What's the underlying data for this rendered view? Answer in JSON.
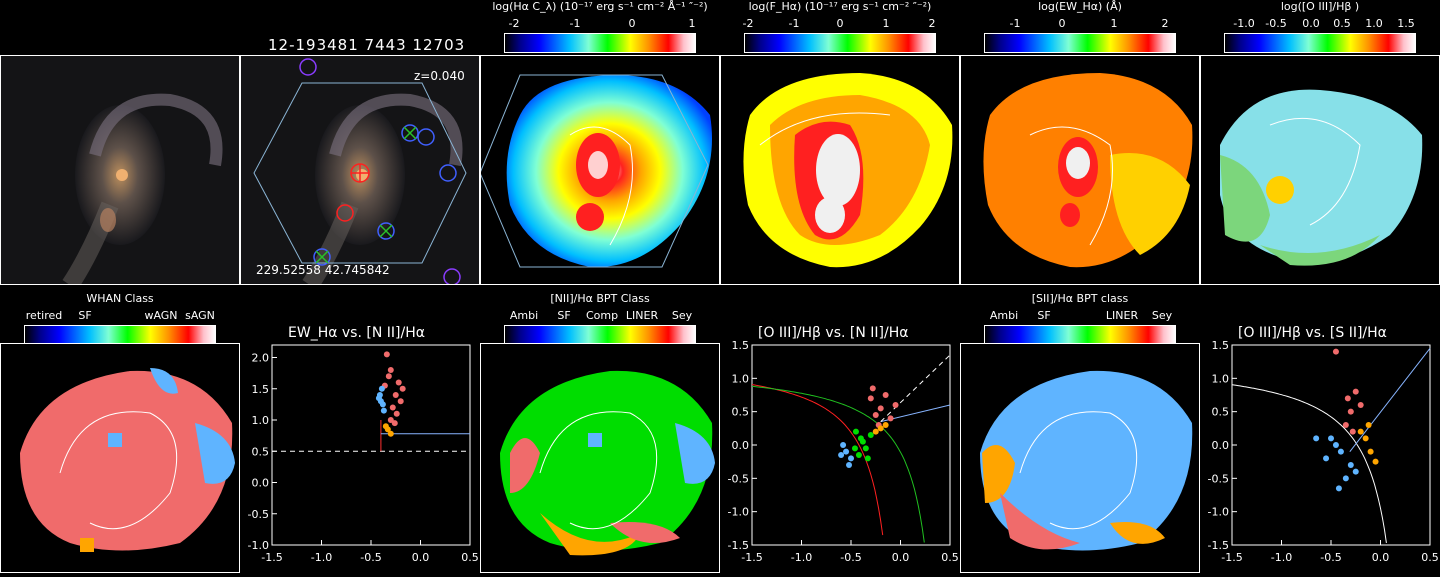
{
  "header": {
    "plate_ifu": "12-193481 7443 12703"
  },
  "image_panels": {
    "redshift": "z=0.040",
    "coords": "229.52558 42.745842"
  },
  "colorbars": [
    {
      "id": "ha-cont",
      "title": "log(Hα C_λ) (10⁻¹⁷ erg s⁻¹ cm⁻² Å⁻¹ ″⁻²)",
      "ticks": [
        "-2",
        "-1",
        "0",
        "1"
      ]
    },
    {
      "id": "ha-flux",
      "title": "log(F_Hα) (10⁻¹⁷ erg s⁻¹ cm⁻² ″⁻²)",
      "ticks": [
        "-2",
        "-1",
        "0",
        "1",
        "2"
      ]
    },
    {
      "id": "ew-ha",
      "title": "log(EW_Hα) (Å)",
      "ticks": [
        "-1",
        "0",
        "1",
        "2"
      ]
    },
    {
      "id": "oiii-hb",
      "title": "log([O III]/Hβ )",
      "ticks": [
        "-1.0",
        "-0.5",
        "0.0",
        "0.5",
        "1.0",
        "1.5"
      ]
    },
    {
      "id": "whan",
      "title": "WHAN Class",
      "ticks": [
        "retired",
        "SF",
        "wAGN",
        "sAGN"
      ]
    },
    {
      "id": "nii-bpt",
      "title": "[NII]/Hα BPT Class",
      "ticks": [
        "Ambi",
        "SF",
        "Comp",
        "LINER",
        "Sey"
      ]
    },
    {
      "id": "sii-bpt",
      "title": "[SII]/Hα BPT class",
      "ticks": [
        "Ambi",
        "SF",
        "LINER",
        "Sey"
      ]
    }
  ],
  "chart_data": [
    {
      "type": "scatter",
      "title": "EW_Hα vs. [N II]/Hα",
      "xlim": [
        -1.5,
        0.5
      ],
      "ylim": [
        -1.0,
        2.2
      ],
      "xticks": [
        "-1.5",
        "-1.0",
        "-0.5",
        "0.0",
        "0.5"
      ],
      "yticks": [
        "-1.0",
        "-0.5",
        "0.0",
        "0.5",
        "1.0",
        "1.5",
        "2.0"
      ],
      "series": [
        {
          "color": "#f06b6b",
          "points": [
            [
              -0.36,
              1.55
            ],
            [
              -0.32,
              1.7
            ],
            [
              -0.28,
              1.2
            ],
            [
              -0.25,
              1.4
            ],
            [
              -0.3,
              1.0
            ],
            [
              -0.22,
              1.6
            ],
            [
              -0.34,
              2.05
            ],
            [
              -0.2,
              1.3
            ],
            [
              -0.26,
              0.95
            ],
            [
              -0.3,
              1.8
            ],
            [
              -0.18,
              1.5
            ],
            [
              -0.24,
              1.1
            ]
          ]
        },
        {
          "color": "#5fb4ff",
          "points": [
            [
              -0.4,
              1.3
            ],
            [
              -0.38,
              1.25
            ],
            [
              -0.41,
              1.4
            ],
            [
              -0.37,
              1.15
            ],
            [
              -0.39,
              1.5
            ],
            [
              -0.42,
              1.35
            ]
          ]
        },
        {
          "color": "#ffa500",
          "points": [
            [
              -0.35,
              0.9
            ],
            [
              -0.3,
              0.78
            ],
            [
              -0.33,
              0.85
            ]
          ]
        }
      ]
    },
    {
      "type": "scatter",
      "title": "[O III]/Hβ vs. [N II]/Hα",
      "xlim": [
        -1.5,
        0.5
      ],
      "ylim": [
        -1.5,
        1.5
      ],
      "xticks": [
        "-1.5",
        "-1.0",
        "-0.5",
        "0.0",
        "0.5"
      ],
      "yticks": [
        "-1.5",
        "-1.0",
        "-0.5",
        "0.0",
        "0.5",
        "1.0",
        "1.5"
      ],
      "series": [
        {
          "color": "#f06b6b",
          "points": [
            [
              -0.3,
              0.7
            ],
            [
              -0.2,
              0.55
            ],
            [
              -0.15,
              0.75
            ],
            [
              -0.25,
              0.45
            ],
            [
              -0.1,
              0.4
            ],
            [
              -0.28,
              0.85
            ],
            [
              -0.05,
              0.6
            ],
            [
              -0.22,
              0.3
            ]
          ]
        },
        {
          "color": "#00dd00",
          "points": [
            [
              -0.45,
              0.2
            ],
            [
              -0.4,
              0.1
            ],
            [
              -0.35,
              -0.05
            ],
            [
              -0.42,
              -0.15
            ],
            [
              -0.3,
              0.15
            ],
            [
              -0.38,
              0.05
            ],
            [
              -0.33,
              -0.2
            ],
            [
              -0.46,
              -0.05
            ]
          ]
        },
        {
          "color": "#5fb4ff",
          "points": [
            [
              -0.55,
              -0.1
            ],
            [
              -0.5,
              -0.2
            ],
            [
              -0.58,
              0.0
            ],
            [
              -0.52,
              -0.3
            ],
            [
              -0.6,
              -0.15
            ]
          ]
        },
        {
          "color": "#ffa500",
          "points": [
            [
              -0.2,
              0.25
            ],
            [
              -0.15,
              0.3
            ],
            [
              -0.25,
              0.2
            ]
          ]
        }
      ]
    },
    {
      "type": "scatter",
      "title": "[O III]/Hβ vs. [S II]/Hα",
      "xlim": [
        -1.5,
        0.5
      ],
      "ylim": [
        -1.5,
        1.5
      ],
      "xticks": [
        "-1.5",
        "-1.0",
        "-0.5",
        "0.0",
        "0.5"
      ],
      "yticks": [
        "-1.5",
        "-1.0",
        "-0.5",
        "0.0",
        "0.5",
        "1.0",
        "1.5"
      ],
      "series": [
        {
          "color": "#f06b6b",
          "points": [
            [
              -0.3,
              0.5
            ],
            [
              -0.25,
              0.8
            ],
            [
              -0.35,
              0.3
            ],
            [
              -0.2,
              0.6
            ],
            [
              -0.45,
              1.4
            ],
            [
              -0.28,
              0.2
            ],
            [
              -0.33,
              0.7
            ]
          ]
        },
        {
          "color": "#5fb4ff",
          "points": [
            [
              -0.5,
              0.1
            ],
            [
              -0.4,
              -0.1
            ],
            [
              -0.3,
              -0.3
            ],
            [
              -0.45,
              0.0
            ],
            [
              -0.35,
              -0.5
            ],
            [
              -0.55,
              -0.2
            ],
            [
              -0.25,
              -0.4
            ],
            [
              -0.42,
              -0.65
            ],
            [
              -0.65,
              0.1
            ]
          ]
        },
        {
          "color": "#ffa500",
          "points": [
            [
              -0.15,
              0.1
            ],
            [
              -0.1,
              -0.1
            ],
            [
              -0.2,
              0.2
            ],
            [
              -0.05,
              -0.25
            ],
            [
              -0.12,
              0.3
            ]
          ]
        }
      ]
    }
  ]
}
